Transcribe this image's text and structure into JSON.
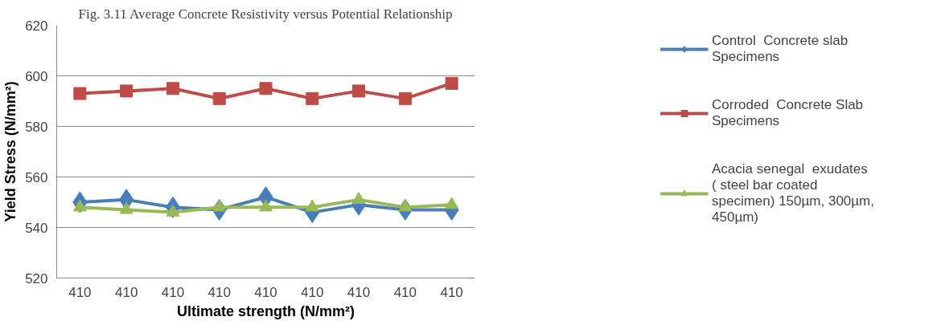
{
  "chart_data": {
    "type": "line",
    "title": "Fig. 3.11 Average Concrete Resistivity versus Potential Relationship",
    "categories": [
      "410",
      "410",
      "410",
      "410",
      "410",
      "410",
      "410",
      "410",
      "410"
    ],
    "series": [
      {
        "name": "Control  Concrete slab Specimens",
        "color": "#4a7ebb",
        "marker": "diamond",
        "values": [
          550,
          551,
          548,
          547,
          552,
          546,
          549,
          547,
          547
        ]
      },
      {
        "name": "Corroded  Concrete Slab Specimens",
        "color": "#be4b48",
        "marker": "square",
        "values": [
          593,
          594,
          595,
          591,
          595,
          591,
          594,
          591,
          597
        ]
      },
      {
        "name": "Acacia senegal  exudates    ( steel bar coated specimen) 150µm, 300µm, 450µm)",
        "color": "#98b954",
        "marker": "triangle",
        "values": [
          548,
          547,
          546,
          548,
          548,
          548,
          551,
          548,
          549
        ]
      }
    ],
    "ylabel": "Yield Stress (N/mm²)",
    "xlabel": "Ultimate strength (N/mm²)",
    "ylim": [
      520,
      620
    ],
    "yticks": [
      520,
      540,
      560,
      580,
      600,
      620
    ],
    "grid": "y",
    "legend": "right",
    "line_style": "solid"
  }
}
